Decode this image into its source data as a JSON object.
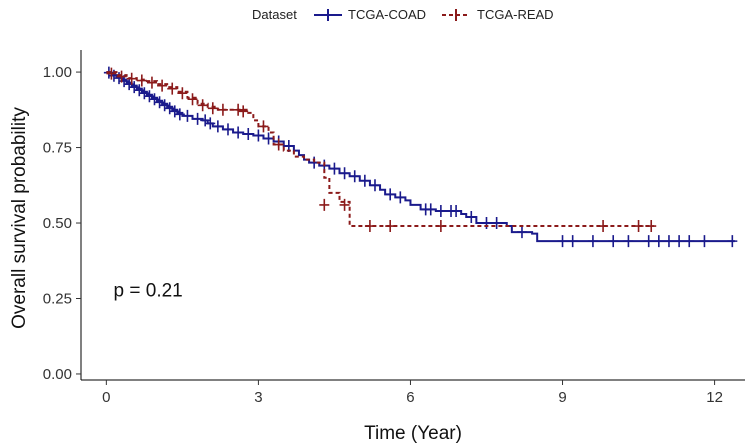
{
  "chart_data": {
    "type": "line",
    "subtype": "kaplan-meier",
    "title": "",
    "xlabel": "Time (Year)",
    "ylabel": "Overall survival probability",
    "xlim": [
      -0.5,
      12.6
    ],
    "ylim": [
      -0.02,
      1.04
    ],
    "xticks": [
      0,
      3,
      6,
      9,
      12
    ],
    "xtick_labels": [
      "0",
      "3",
      "6",
      "9",
      "12"
    ],
    "yticks": [
      0.0,
      0.25,
      0.5,
      0.75,
      1.0
    ],
    "ytick_labels": [
      "0.00",
      "0.25",
      "0.50",
      "0.75",
      "1.00"
    ],
    "grid": false,
    "legend": {
      "title": "Dataset",
      "position": "top",
      "entries": [
        "TCGA-COAD",
        "TCGA-READ"
      ]
    },
    "annotation": {
      "text": "p = 0.21",
      "x": 0.3,
      "y": 0.28
    },
    "series": [
      {
        "name": "TCGA-COAD",
        "color": "#1a1a8c",
        "dash": "solid",
        "steps": [
          [
            0,
            1.0
          ],
          [
            0.1,
            0.99
          ],
          [
            0.2,
            0.985
          ],
          [
            0.3,
            0.975
          ],
          [
            0.4,
            0.965
          ],
          [
            0.5,
            0.955
          ],
          [
            0.6,
            0.945
          ],
          [
            0.7,
            0.935
          ],
          [
            0.8,
            0.925
          ],
          [
            0.9,
            0.915
          ],
          [
            1.0,
            0.905
          ],
          [
            1.1,
            0.895
          ],
          [
            1.2,
            0.885
          ],
          [
            1.3,
            0.875
          ],
          [
            1.4,
            0.865
          ],
          [
            1.5,
            0.855
          ],
          [
            1.7,
            0.845
          ],
          [
            1.9,
            0.84
          ],
          [
            2.0,
            0.83
          ],
          [
            2.1,
            0.82
          ],
          [
            2.3,
            0.81
          ],
          [
            2.5,
            0.8
          ],
          [
            2.7,
            0.795
          ],
          [
            2.9,
            0.79
          ],
          [
            3.1,
            0.78
          ],
          [
            3.3,
            0.77
          ],
          [
            3.5,
            0.755
          ],
          [
            3.7,
            0.74
          ],
          [
            3.8,
            0.725
          ],
          [
            3.9,
            0.71
          ],
          [
            4.0,
            0.7
          ],
          [
            4.2,
            0.69
          ],
          [
            4.4,
            0.68
          ],
          [
            4.6,
            0.665
          ],
          [
            4.8,
            0.655
          ],
          [
            5.0,
            0.64
          ],
          [
            5.2,
            0.625
          ],
          [
            5.4,
            0.61
          ],
          [
            5.5,
            0.595
          ],
          [
            5.7,
            0.585
          ],
          [
            5.9,
            0.575
          ],
          [
            6.0,
            0.56
          ],
          [
            6.2,
            0.545
          ],
          [
            6.5,
            0.54
          ],
          [
            7.0,
            0.53
          ],
          [
            7.1,
            0.52
          ],
          [
            7.3,
            0.5
          ],
          [
            7.9,
            0.49
          ],
          [
            8.0,
            0.47
          ],
          [
            8.4,
            0.465
          ],
          [
            8.5,
            0.44
          ],
          [
            12.4,
            0.44
          ]
        ],
        "censor": [
          [
            0.05,
            0.998
          ],
          [
            0.15,
            0.988
          ],
          [
            0.25,
            0.98
          ],
          [
            0.35,
            0.97
          ],
          [
            0.45,
            0.96
          ],
          [
            0.55,
            0.95
          ],
          [
            0.65,
            0.94
          ],
          [
            0.75,
            0.93
          ],
          [
            0.85,
            0.92
          ],
          [
            0.95,
            0.91
          ],
          [
            1.05,
            0.9
          ],
          [
            1.15,
            0.89
          ],
          [
            1.25,
            0.88
          ],
          [
            1.35,
            0.87
          ],
          [
            1.45,
            0.86
          ],
          [
            1.6,
            0.855
          ],
          [
            1.8,
            0.845
          ],
          [
            1.95,
            0.84
          ],
          [
            2.05,
            0.83
          ],
          [
            2.2,
            0.82
          ],
          [
            2.4,
            0.81
          ],
          [
            2.6,
            0.8
          ],
          [
            2.8,
            0.795
          ],
          [
            3.0,
            0.79
          ],
          [
            3.2,
            0.78
          ],
          [
            3.4,
            0.77
          ],
          [
            3.6,
            0.755
          ],
          [
            4.1,
            0.7
          ],
          [
            4.3,
            0.69
          ],
          [
            4.5,
            0.68
          ],
          [
            4.7,
            0.665
          ],
          [
            4.9,
            0.655
          ],
          [
            5.1,
            0.64
          ],
          [
            5.3,
            0.625
          ],
          [
            5.6,
            0.595
          ],
          [
            5.8,
            0.585
          ],
          [
            6.3,
            0.545
          ],
          [
            6.4,
            0.545
          ],
          [
            6.6,
            0.54
          ],
          [
            6.8,
            0.54
          ],
          [
            6.9,
            0.54
          ],
          [
            7.2,
            0.52
          ],
          [
            7.5,
            0.5
          ],
          [
            7.7,
            0.5
          ],
          [
            8.2,
            0.47
          ],
          [
            9.0,
            0.44
          ],
          [
            9.2,
            0.44
          ],
          [
            9.6,
            0.44
          ],
          [
            10.0,
            0.44
          ],
          [
            10.3,
            0.44
          ],
          [
            10.7,
            0.44
          ],
          [
            10.9,
            0.44
          ],
          [
            11.1,
            0.44
          ],
          [
            11.3,
            0.44
          ],
          [
            11.5,
            0.44
          ],
          [
            11.8,
            0.44
          ],
          [
            12.35,
            0.44
          ]
        ]
      },
      {
        "name": "TCGA-READ",
        "color": "#8b1a1a",
        "dash": "dashed",
        "steps": [
          [
            0,
            1.0
          ],
          [
            0.2,
            0.99
          ],
          [
            0.4,
            0.98
          ],
          [
            0.6,
            0.975
          ],
          [
            0.8,
            0.97
          ],
          [
            1.0,
            0.96
          ],
          [
            1.2,
            0.95
          ],
          [
            1.4,
            0.935
          ],
          [
            1.6,
            0.915
          ],
          [
            1.8,
            0.895
          ],
          [
            2.0,
            0.885
          ],
          [
            2.2,
            0.875
          ],
          [
            2.5,
            0.875
          ],
          [
            2.8,
            0.865
          ],
          [
            2.9,
            0.84
          ],
          [
            3.0,
            0.82
          ],
          [
            3.2,
            0.8
          ],
          [
            3.3,
            0.76
          ],
          [
            3.5,
            0.74
          ],
          [
            3.7,
            0.72
          ],
          [
            3.9,
            0.71
          ],
          [
            4.1,
            0.7
          ],
          [
            4.3,
            0.65
          ],
          [
            4.4,
            0.6
          ],
          [
            4.6,
            0.57
          ],
          [
            4.8,
            0.49
          ],
          [
            10.8,
            0.49
          ]
        ],
        "censor": [
          [
            0.1,
            0.995
          ],
          [
            0.3,
            0.985
          ],
          [
            0.5,
            0.978
          ],
          [
            0.7,
            0.972
          ],
          [
            0.9,
            0.965
          ],
          [
            1.1,
            0.955
          ],
          [
            1.3,
            0.945
          ],
          [
            1.5,
            0.93
          ],
          [
            1.7,
            0.91
          ],
          [
            1.9,
            0.89
          ],
          [
            2.1,
            0.88
          ],
          [
            2.3,
            0.875
          ],
          [
            2.6,
            0.875
          ],
          [
            2.7,
            0.87
          ],
          [
            3.1,
            0.82
          ],
          [
            3.4,
            0.76
          ],
          [
            4.3,
            0.56
          ],
          [
            4.7,
            0.56
          ],
          [
            5.2,
            0.49
          ],
          [
            5.6,
            0.49
          ],
          [
            6.6,
            0.49
          ],
          [
            9.8,
            0.49
          ],
          [
            10.5,
            0.49
          ],
          [
            10.75,
            0.49
          ]
        ]
      }
    ]
  }
}
